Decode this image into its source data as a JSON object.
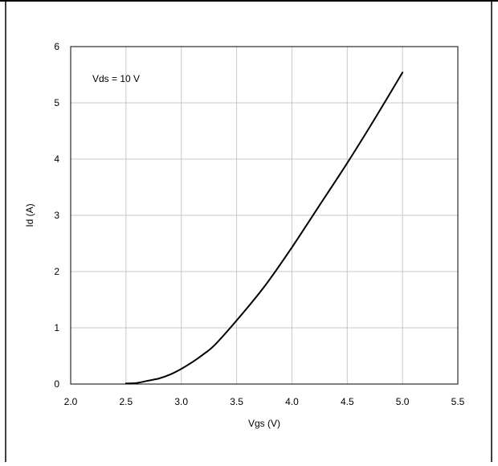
{
  "chart_data": {
    "type": "line",
    "title": "",
    "xlabel": "Vgs (V)",
    "ylabel": "Id (A)",
    "xlim": [
      2.0,
      5.5
    ],
    "ylim": [
      0,
      6
    ],
    "x_ticks": [
      "2.0",
      "2.5",
      "3.0",
      "3.5",
      "4.0",
      "4.5",
      "5.0",
      "5.5"
    ],
    "y_ticks": [
      "0",
      "1",
      "2",
      "3",
      "4",
      "5",
      "6"
    ],
    "grid": true,
    "legend": "none",
    "annotation": "Vds = 10 V",
    "line_color": "#000000",
    "grid_color": "#c8c8c8",
    "series": [
      {
        "x": [
          2.5,
          2.6,
          2.7,
          2.8,
          2.9,
          3.0,
          3.1,
          3.2,
          3.3,
          3.5,
          3.75,
          4.0,
          4.25,
          4.5,
          4.75,
          5.0
        ],
        "y": [
          0.01,
          0.02,
          0.06,
          0.1,
          0.17,
          0.27,
          0.39,
          0.53,
          0.69,
          1.13,
          1.73,
          2.43,
          3.18,
          3.93,
          4.72,
          5.54
        ]
      }
    ]
  }
}
